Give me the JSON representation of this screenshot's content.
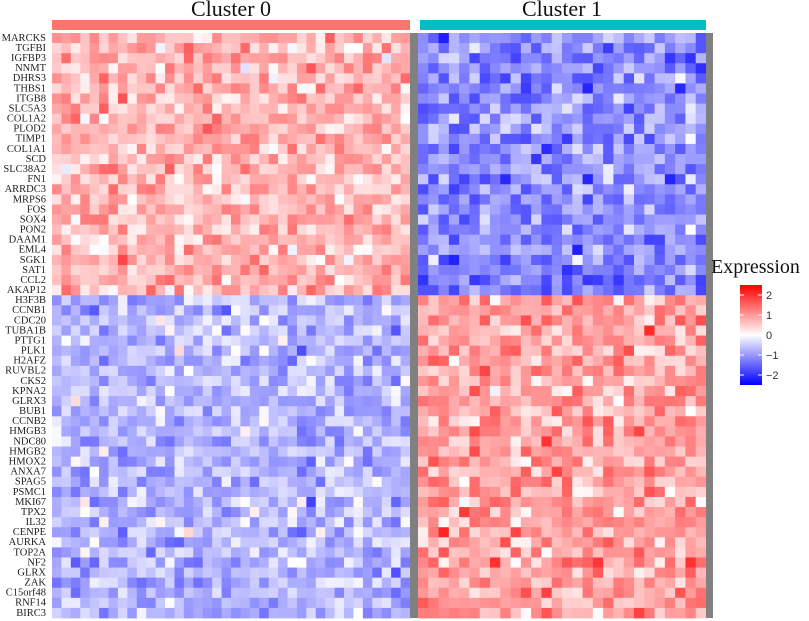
{
  "chart_data": {
    "type": "heatmap",
    "clusters": [
      {
        "name": "Cluster 0",
        "color": "#F8766D",
        "n_cells": 38
      },
      {
        "name": "Cluster 1",
        "color": "#00BFC4",
        "n_cells": 28
      }
    ],
    "genes": [
      "MARCKS",
      "TGFBI",
      "IGFBP3",
      "NNMT",
      "DHRS3",
      "THBS1",
      "ITGB8",
      "SLC5A3",
      "COL1A2",
      "PLOD2",
      "TIMP1",
      "COL1A1",
      "SCD",
      "SLC38A2",
      "FN1",
      "ARRDC3",
      "MRPS6",
      "FOS",
      "SOX4",
      "PON2",
      "DAAM1",
      "EML4",
      "SGK1",
      "SAT1",
      "CCL2",
      "AKAP12",
      "H3F3B",
      "CCNB1",
      "CDC20",
      "TUBA1B",
      "PTTG1",
      "PLK1",
      "H2AFZ",
      "RUVBL2",
      "CKS2",
      "KPNA2",
      "GLRX3",
      "BUB1",
      "CCNB2",
      "HMGB3",
      "NDC80",
      "HMGB2",
      "HMOX2",
      "ANXA7",
      "SPAG5",
      "PSMC1",
      "MKI67",
      "TPX2",
      "IL32",
      "CENPE",
      "AURKA",
      "TOP2A",
      "NF2",
      "GLRX",
      "ZAK",
      "C15orf48",
      "RNF14",
      "BIRC3"
    ],
    "upregulated_in_cluster0": [
      "MARCKS",
      "TGFBI",
      "IGFBP3",
      "NNMT",
      "DHRS3",
      "THBS1",
      "ITGB8",
      "SLC5A3",
      "COL1A2",
      "PLOD2",
      "TIMP1",
      "COL1A1",
      "SCD",
      "SLC38A2",
      "FN1",
      "ARRDC3",
      "MRPS6",
      "FOS",
      "SOX4",
      "PON2",
      "DAAM1",
      "EML4",
      "SGK1",
      "SAT1",
      "CCL2",
      "AKAP12"
    ],
    "upregulated_in_cluster1": [
      "H3F3B",
      "CCNB1",
      "CDC20",
      "TUBA1B",
      "PTTG1",
      "PLK1",
      "H2AFZ",
      "RUVBL2",
      "CKS2",
      "KPNA2",
      "GLRX3",
      "BUB1",
      "CCNB2",
      "HMGB3",
      "NDC80",
      "HMGB2",
      "HMOX2",
      "ANXA7",
      "SPAG5",
      "PSMC1",
      "MKI67",
      "TPX2",
      "IL32",
      "CENPE",
      "AURKA",
      "TOP2A",
      "NF2",
      "GLRX",
      "ZAK",
      "C15orf48",
      "RNF14",
      "BIRC3"
    ],
    "color_scale": {
      "title": "Expression",
      "range": [
        -2.5,
        2.5
      ],
      "ticks": [
        2,
        1,
        0,
        -1,
        -2
      ],
      "tick_labels": [
        "2",
        "1",
        "0",
        "−1",
        "−2"
      ],
      "low_color": "#0000FF",
      "mid_color": "#FFFFFF",
      "high_color": "#FF0000"
    },
    "separator_color": "#808080"
  }
}
